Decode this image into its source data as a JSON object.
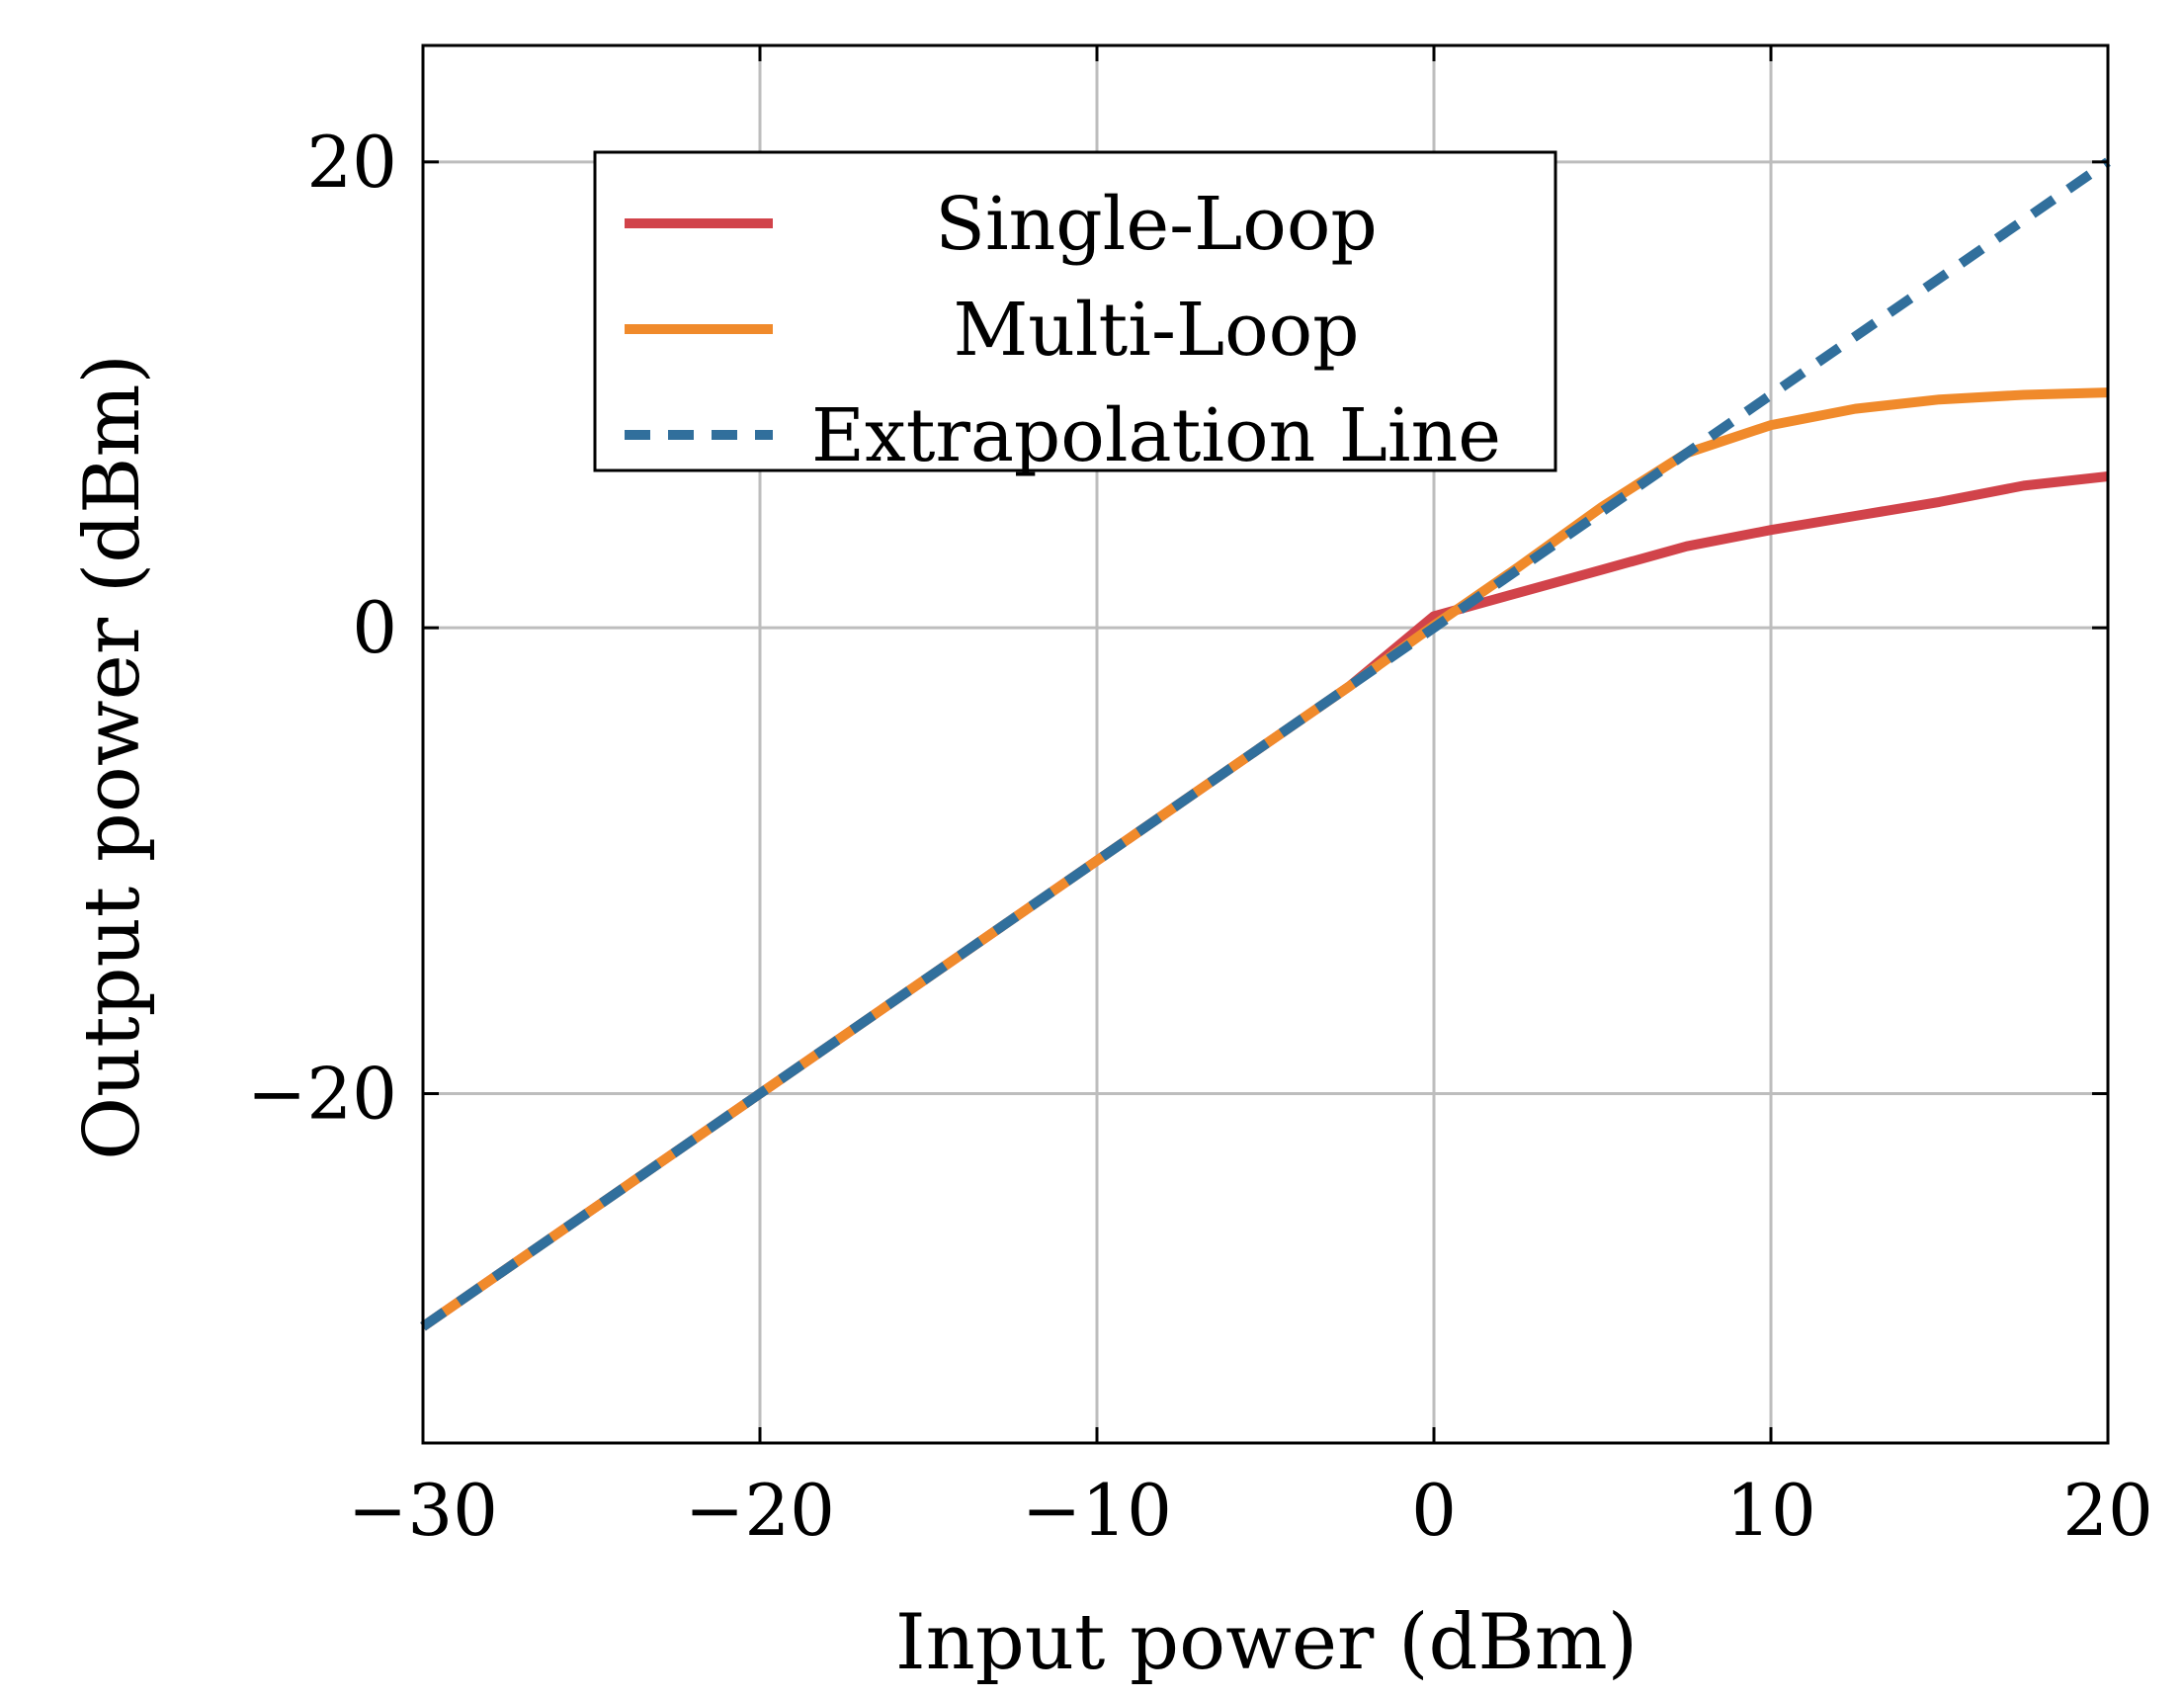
{
  "chart_data": {
    "type": "line",
    "xlabel": "Input power (dBm)",
    "ylabel": "Output power (dBm)",
    "xlim": [
      -30,
      20
    ],
    "ylim": [
      -35,
      25
    ],
    "x_ticks": [
      -30,
      -20,
      -10,
      0,
      10,
      20
    ],
    "y_ticks": [
      -20,
      0,
      20
    ],
    "x_tick_labels": [
      "−30",
      "−20",
      "−10",
      "0",
      "10",
      "20"
    ],
    "y_tick_labels": [
      "−20",
      "0",
      "20"
    ],
    "grid": true,
    "legend_position": "top-left",
    "series": [
      {
        "name": "Single-Loop",
        "color": "#d1434a",
        "style": "solid",
        "x": [
          -30,
          -25,
          -20,
          -15,
          -10,
          -5,
          -2.5,
          0,
          2.5,
          5,
          7.5,
          10,
          12.5,
          15,
          17.5,
          20
        ],
        "y": [
          -30,
          -25,
          -20,
          -15,
          -10,
          -5,
          -2.5,
          0.5,
          1.5,
          2.5,
          3.5,
          4.2,
          4.8,
          5.4,
          6.1,
          6.5
        ]
      },
      {
        "name": "Multi-Loop",
        "color": "#f08a2b",
        "style": "solid",
        "x": [
          -30,
          -25,
          -20,
          -15,
          -10,
          -5,
          -2.5,
          0,
          2.5,
          5,
          7.5,
          10,
          12.5,
          15,
          17.5,
          20
        ],
        "y": [
          -30,
          -25,
          -20,
          -15,
          -10,
          -5,
          -2.5,
          0.1,
          2.6,
          5.2,
          7.5,
          8.7,
          9.4,
          9.8,
          10.0,
          10.1
        ]
      },
      {
        "name": "Extrapolation Line",
        "color": "#316f9c",
        "style": "dashed",
        "x": [
          -30,
          20
        ],
        "y": [
          -30,
          20
        ]
      }
    ]
  }
}
